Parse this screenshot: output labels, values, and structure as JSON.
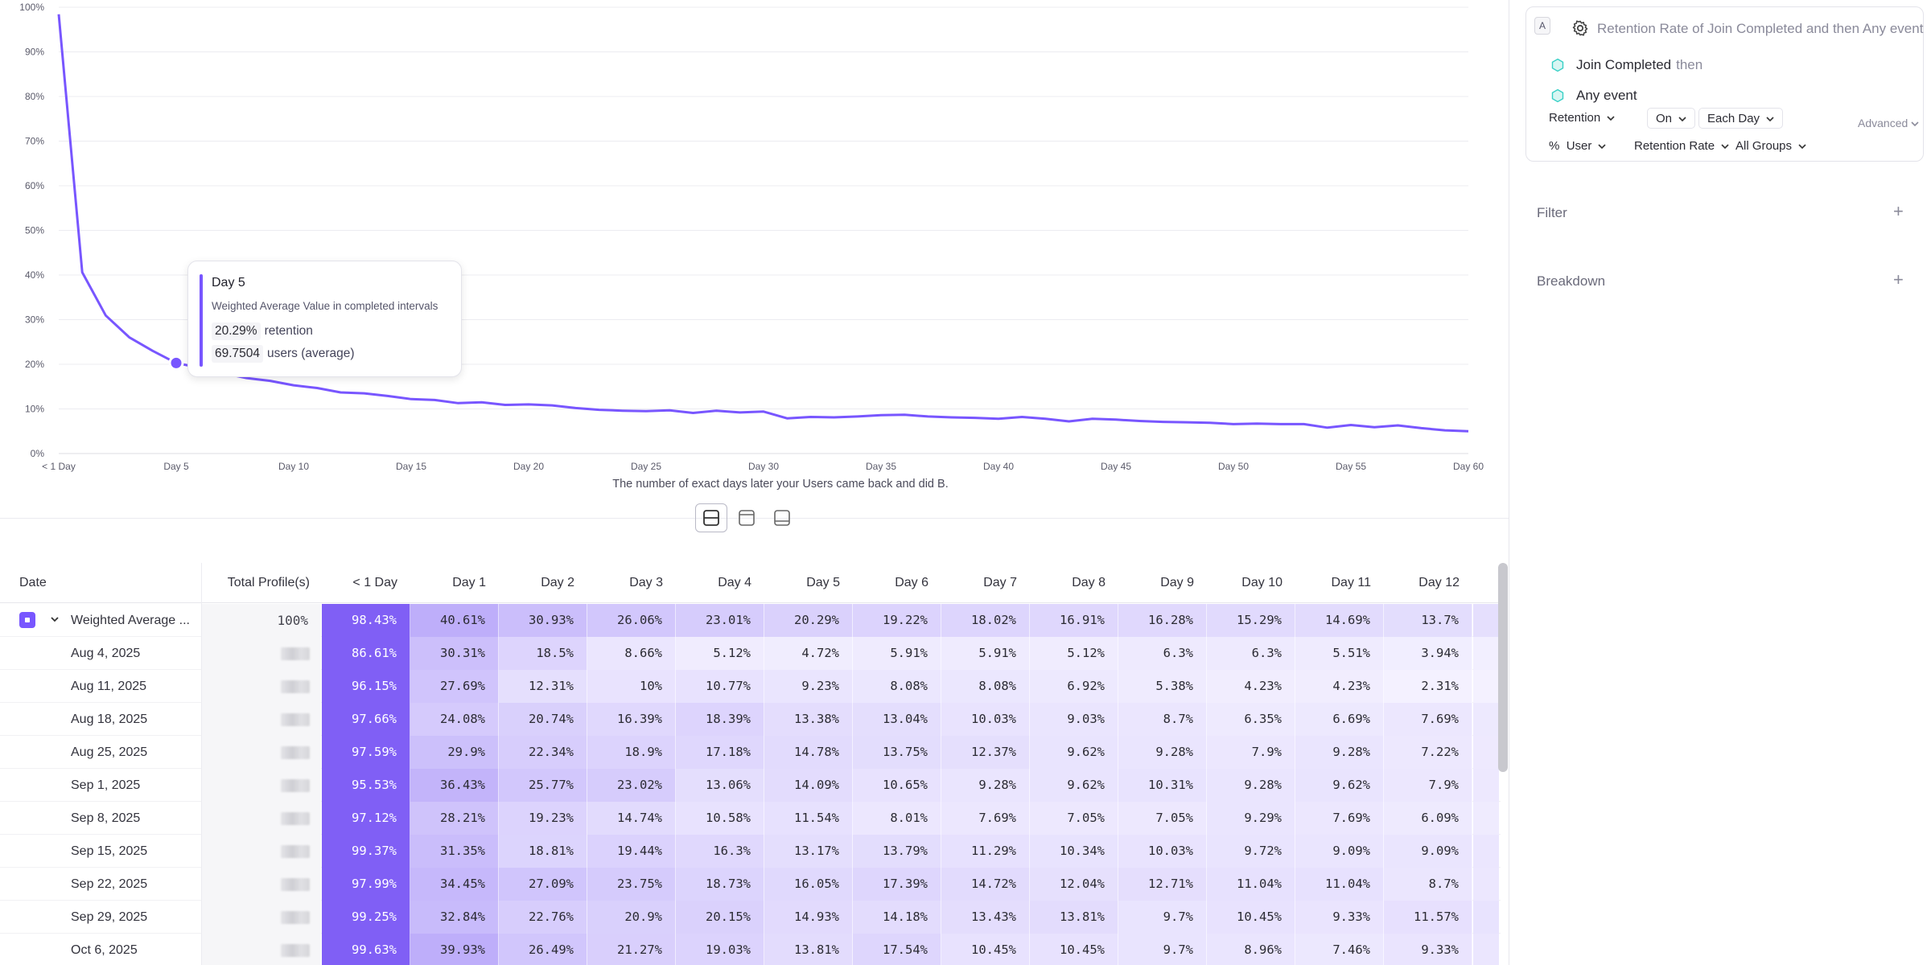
{
  "chart_data": {
    "type": "line",
    "title": "",
    "xlabel": "The number of exact days later your Users came back and did B.",
    "ylabel": "",
    "ylim": [
      0,
      100
    ],
    "y_ticks": [
      "0%",
      "10%",
      "20%",
      "30%",
      "40%",
      "50%",
      "60%",
      "70%",
      "80%",
      "90%",
      "100%"
    ],
    "x_ticks": [
      "< 1 Day",
      "Day 5",
      "Day 10",
      "Day 15",
      "Day 20",
      "Day 25",
      "Day 30",
      "Day 35",
      "Day 40",
      "Day 45",
      "Day 50",
      "Day 55",
      "Day 60"
    ],
    "x": [
      0,
      1,
      2,
      3,
      4,
      5,
      6,
      7,
      8,
      9,
      10,
      11,
      12,
      13,
      14,
      15,
      16,
      17,
      18,
      19,
      20,
      21,
      22,
      23,
      24,
      25,
      26,
      27,
      28,
      29,
      30,
      31,
      32,
      33,
      34,
      35,
      36,
      37,
      38,
      39,
      40,
      41,
      42,
      43,
      44,
      45,
      46,
      47,
      48,
      49,
      50,
      51,
      52,
      53,
      54,
      55,
      56,
      57,
      58,
      59,
      60
    ],
    "series": [
      {
        "color": "#7856ff",
        "values": [
          98.43,
          40.61,
          30.93,
          26.06,
          23.01,
          20.29,
          19.22,
          18.02,
          16.91,
          16.28,
          15.29,
          14.69,
          13.7,
          13.5,
          12.9,
          12.2,
          12.0,
          11.3,
          11.5,
          10.9,
          11.0,
          10.8,
          10.2,
          9.8,
          9.6,
          9.5,
          9.7,
          9.1,
          9.6,
          9.2,
          9.4,
          7.9,
          8.2,
          8.1,
          8.3,
          8.6,
          8.7,
          8.3,
          8.1,
          8.0,
          7.8,
          8.2,
          7.8,
          7.2,
          7.8,
          7.6,
          7.3,
          7.1,
          7.0,
          6.9,
          6.6,
          6.7,
          6.6,
          6.6,
          5.8,
          6.4,
          5.9,
          6.3,
          5.7,
          5.2,
          5.0
        ]
      }
    ],
    "highlight": {
      "x": 5,
      "y": 20.29
    }
  },
  "tooltip": {
    "title": "Day 5",
    "subtitle": "Weighted Average Value in completed intervals",
    "retention_value": "20.29%",
    "retention_label": "retention",
    "users_value": "69.7504",
    "users_label": "users (average)"
  },
  "table": {
    "headers": {
      "date": "Date",
      "total": "Total Profile(s)",
      "days": [
        "< 1 Day",
        "Day 1",
        "Day 2",
        "Day 3",
        "Day 4",
        "Day 5",
        "Day 6",
        "Day 7",
        "Day 8",
        "Day 9",
        "Day 10",
        "Day 11",
        "Day 12"
      ]
    },
    "rows": [
      {
        "label": "Weighted Average ...",
        "total": "100%",
        "values": [
          "98.43%",
          "40.61%",
          "30.93%",
          "26.06%",
          "23.01%",
          "20.29%",
          "19.22%",
          "18.02%",
          "16.91%",
          "16.28%",
          "15.29%",
          "14.69%",
          "13.7%"
        ]
      },
      {
        "label": "Aug 4, 2025",
        "total": "",
        "values": [
          "86.61%",
          "30.31%",
          "18.5%",
          "8.66%",
          "5.12%",
          "4.72%",
          "5.91%",
          "5.91%",
          "5.12%",
          "6.3%",
          "6.3%",
          "5.51%",
          "3.94%"
        ]
      },
      {
        "label": "Aug 11, 2025",
        "total": "",
        "values": [
          "96.15%",
          "27.69%",
          "12.31%",
          "10%",
          "10.77%",
          "9.23%",
          "8.08%",
          "8.08%",
          "6.92%",
          "5.38%",
          "4.23%",
          "4.23%",
          "2.31%"
        ]
      },
      {
        "label": "Aug 18, 2025",
        "total": "",
        "values": [
          "97.66%",
          "24.08%",
          "20.74%",
          "16.39%",
          "18.39%",
          "13.38%",
          "13.04%",
          "10.03%",
          "9.03%",
          "8.7%",
          "6.35%",
          "6.69%",
          "7.69%"
        ]
      },
      {
        "label": "Aug 25, 2025",
        "total": "",
        "values": [
          "97.59%",
          "29.9%",
          "22.34%",
          "18.9%",
          "17.18%",
          "14.78%",
          "13.75%",
          "12.37%",
          "9.62%",
          "9.28%",
          "7.9%",
          "9.28%",
          "7.22%"
        ]
      },
      {
        "label": "Sep 1, 2025",
        "total": "",
        "values": [
          "95.53%",
          "36.43%",
          "25.77%",
          "23.02%",
          "13.06%",
          "14.09%",
          "10.65%",
          "9.28%",
          "9.62%",
          "10.31%",
          "9.28%",
          "9.62%",
          "7.9%"
        ]
      },
      {
        "label": "Sep 8, 2025",
        "total": "",
        "values": [
          "97.12%",
          "28.21%",
          "19.23%",
          "14.74%",
          "10.58%",
          "11.54%",
          "8.01%",
          "7.69%",
          "7.05%",
          "7.05%",
          "9.29%",
          "7.69%",
          "6.09%"
        ]
      },
      {
        "label": "Sep 15, 2025",
        "total": "",
        "values": [
          "99.37%",
          "31.35%",
          "18.81%",
          "19.44%",
          "16.3%",
          "13.17%",
          "13.79%",
          "11.29%",
          "10.34%",
          "10.03%",
          "9.72%",
          "9.09%",
          "9.09%"
        ]
      },
      {
        "label": "Sep 22, 2025",
        "total": "",
        "values": [
          "97.99%",
          "34.45%",
          "27.09%",
          "23.75%",
          "18.73%",
          "16.05%",
          "17.39%",
          "14.72%",
          "12.04%",
          "12.71%",
          "11.04%",
          "11.04%",
          "8.7%"
        ]
      },
      {
        "label": "Sep 29, 2025",
        "total": "",
        "values": [
          "99.25%",
          "32.84%",
          "22.76%",
          "20.9%",
          "20.15%",
          "14.93%",
          "14.18%",
          "13.43%",
          "13.81%",
          "9.7%",
          "10.45%",
          "9.33%",
          "11.57%"
        ]
      },
      {
        "label": "Oct 6, 2025",
        "total": "",
        "values": [
          "99.63%",
          "39.93%",
          "26.49%",
          "21.27%",
          "19.03%",
          "13.81%",
          "17.54%",
          "10.45%",
          "10.45%",
          "9.7%",
          "8.96%",
          "7.46%",
          "9.33%"
        ]
      }
    ]
  },
  "panel": {
    "badge": "A",
    "metric_title": "Retention Rate of Join Completed and then Any event",
    "event1": "Join Completed",
    "event1_suffix": "then",
    "event2": "Any event",
    "retention": "Retention",
    "on": "On",
    "each_day": "Each Day",
    "advanced": "Advanced",
    "pct": "%",
    "user": "User",
    "retention_rate": "Retention Rate",
    "all_groups": "All Groups",
    "filter": "Filter",
    "breakdown": "Breakdown"
  },
  "colors": {
    "accent": "#7856ff",
    "event_icon": "#37d0c6"
  }
}
